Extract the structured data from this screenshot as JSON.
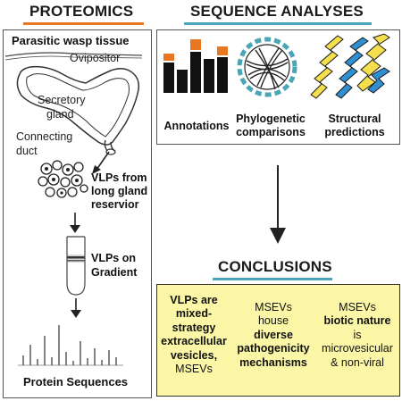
{
  "proteomics": {
    "title": "PROTEOMICS",
    "panel_title": "Parasitic wasp tissue",
    "labels": {
      "ovipositor": "Ovipositor",
      "secretory_gland": [
        "Secretory",
        "gland"
      ],
      "connecting_duct": [
        "Connecting",
        "duct"
      ],
      "vlps_reservior": [
        "VLPs from",
        "long gland",
        "reservior"
      ],
      "vlps_gradient": [
        "VLPs on",
        "Gradient"
      ]
    },
    "bottom_label": "Protein Sequences"
  },
  "sequence_analyses": {
    "title": "SEQUENCE ANALYSES",
    "items": [
      {
        "label": [
          "Annotations"
        ]
      },
      {
        "label": [
          "Phylogenetic",
          "comparisons"
        ]
      },
      {
        "label": [
          "Structural",
          "predictions"
        ]
      }
    ]
  },
  "conclusions": {
    "title": "CONCLUSIONS",
    "col1": {
      "bold": [
        "VLPs are",
        "mixed-",
        "strategy",
        "extracellular",
        "vesicles,"
      ],
      "plain": [
        "MSEVs"
      ]
    },
    "col2": {
      "plain_top": [
        "MSEVs",
        "house"
      ],
      "bold": [
        "diverse",
        "pathogenicity",
        "mechanisms"
      ]
    },
    "col3": {
      "plain_top": [
        "MSEVs"
      ],
      "bold": [
        "biotic nature"
      ],
      "plain": [
        "is",
        "microvesicular",
        "& non-viral"
      ]
    }
  },
  "colors": {
    "orange": "#e87722",
    "teal": "#4aa6b6",
    "yellow_box": "#fbf7a6",
    "helix_yellow": "#f4e04d",
    "helix_blue": "#2f8fd0"
  }
}
